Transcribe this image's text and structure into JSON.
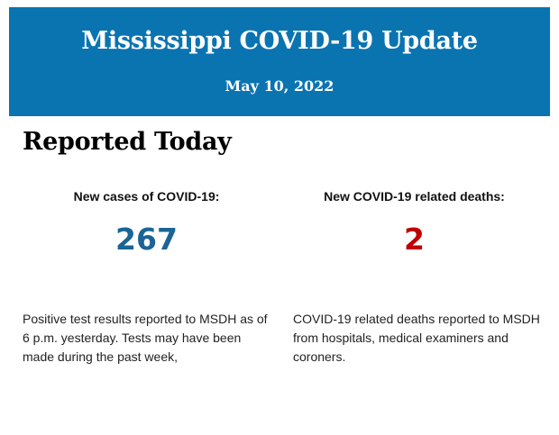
{
  "header": {
    "title": "Mississippi COVID-19 Update",
    "date": "May 10, 2022",
    "background_color": "#0a74b1"
  },
  "section": {
    "heading": "Reported Today"
  },
  "cases": {
    "label": "New cases of COVID-19:",
    "value": "267",
    "color": "#1a6496",
    "description": "Positive test results reported to MSDH as of 6 p.m. yesterday. Tests may have been made during the past week,"
  },
  "deaths": {
    "label": "New COVID-19 related deaths:",
    "value": "2",
    "color": "#c00000",
    "description": "COVID-19 related deaths reported to MSDH from hospitals, medical examiners and coroners."
  }
}
